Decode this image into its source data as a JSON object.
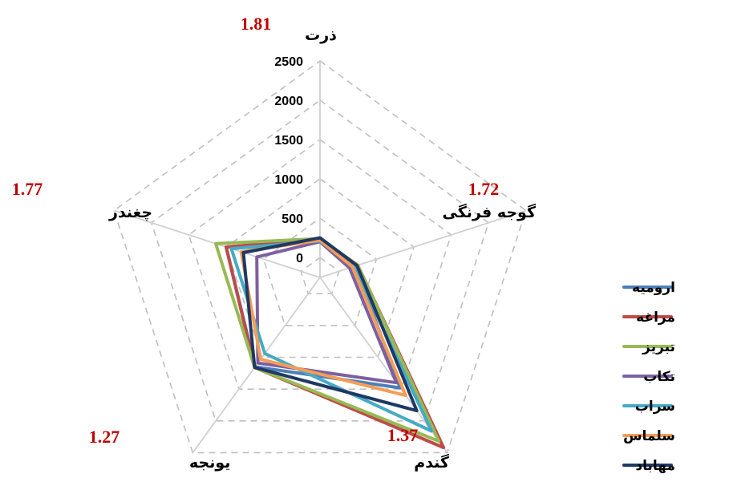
{
  "chart_data": {
    "type": "radar",
    "axes": [
      "ذرت",
      "گوجه فرنگی",
      "گندم",
      "یونجه",
      "چغندر"
    ],
    "ticks": [
      "0",
      "500",
      "1000",
      "1500",
      "2000",
      "2500"
    ],
    "rmax": 2500,
    "grid": "dashed",
    "legend_position": "right",
    "ratios": [
      "1.81",
      "1.72",
      "1.37",
      "1.27",
      "1.77"
    ],
    "series": [
      {
        "name": "ارومیه",
        "color": "#4a7ebb",
        "values": [
          230,
          220,
          1480,
          1150,
          1000
        ]
      },
      {
        "name": "مراغه",
        "color": "#be4b48",
        "values": [
          230,
          250,
          2420,
          1160,
          1000
        ]
      },
      {
        "name": "تبریز",
        "color": "#98b954",
        "values": [
          240,
          250,
          2320,
          1160,
          1140
        ]
      },
      {
        "name": "تکاب",
        "color": "#7d60a0",
        "values": [
          200,
          140,
          1400,
          1090,
          590
        ]
      },
      {
        "name": "سراب",
        "color": "#46aac5",
        "values": [
          210,
          200,
          2160,
          940,
          930
        ]
      },
      {
        "name": "سلماس",
        "color": "#f59d56",
        "values": [
          220,
          180,
          1600,
          1030,
          800
        ]
      },
      {
        "name": "مهاباد",
        "color": "#203864",
        "values": [
          250,
          240,
          1840,
          1160,
          770
        ]
      }
    ]
  }
}
